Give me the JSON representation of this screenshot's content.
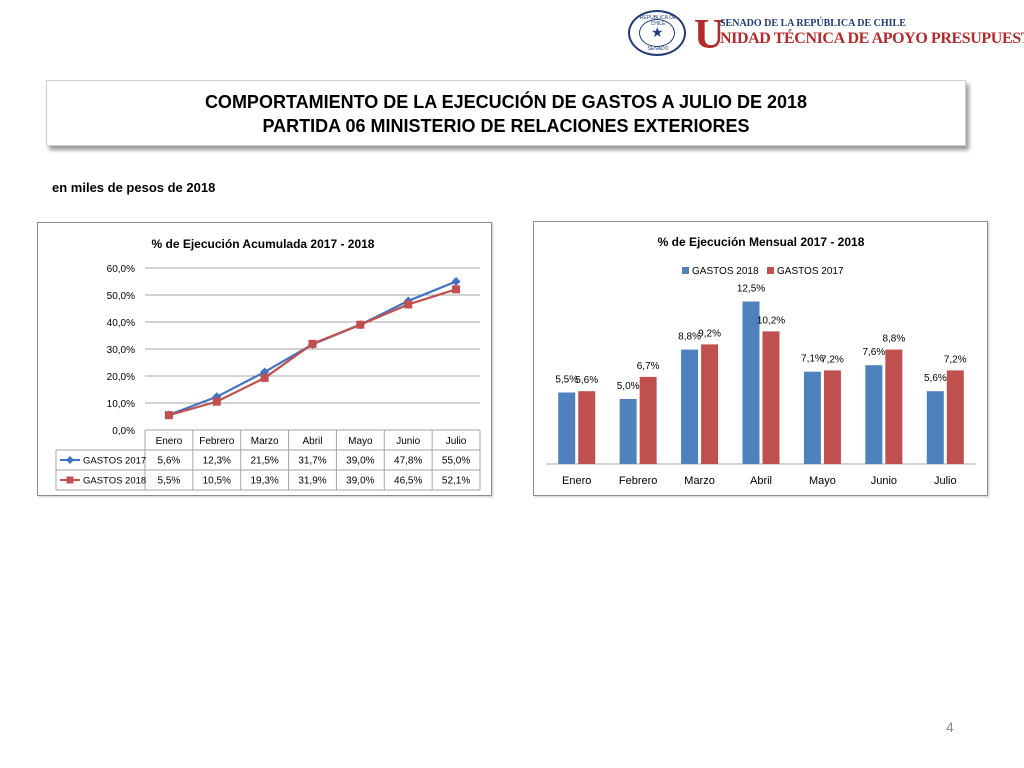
{
  "header": {
    "seal_top": "REPÚBLICA DE CHILE",
    "seal_bottom": "SENADO",
    "logo_letter": "U",
    "logo_line1": "SENADO DE LA REPÚBLICA DE CHILE",
    "logo_line2": "NIDAD TÉCNICA DE APOYO PRESUPUESTARIO",
    "brand_colors": {
      "blue": "#1f3b7a",
      "red": "#b32a2a"
    }
  },
  "title": {
    "line1": "COMPORTAMIENTO DE LA EJECUCIÓN DE GASTOS A JULIO DE 2018",
    "line2": "PARTIDA 06 MINISTERIO DE RELACIONES EXTERIORES"
  },
  "units": "en miles de pesos de 2018",
  "page_number": "4",
  "chart_data": [
    {
      "type": "line",
      "title": "% de Ejecución Acumulada 2017 - 2018",
      "categories": [
        "Enero",
        "Febrero",
        "Marzo",
        "Abril",
        "Mayo",
        "Junio",
        "Julio"
      ],
      "ylim": [
        0,
        60
      ],
      "yticks": [
        "0,0%",
        "10,0%",
        "20,0%",
        "30,0%",
        "40,0%",
        "50,0%",
        "60,0%"
      ],
      "grid": true,
      "legend": "data-table",
      "series": [
        {
          "name": "GASTOS 2017",
          "color": "#4472c4",
          "marker": "diamond",
          "values": [
            5.6,
            12.3,
            21.5,
            31.7,
            39.0,
            47.8,
            55.0
          ],
          "labels": [
            "5,6%",
            "12,3%",
            "21,5%",
            "31,7%",
            "39,0%",
            "47,8%",
            "55,0%"
          ]
        },
        {
          "name": "GASTOS 2018",
          "color": "#c0504d",
          "marker": "square",
          "values": [
            5.5,
            10.5,
            19.3,
            31.9,
            39.0,
            46.5,
            52.1
          ],
          "labels": [
            "5,5%",
            "10,5%",
            "19,3%",
            "31,9%",
            "39,0%",
            "46,5%",
            "52,1%"
          ]
        }
      ]
    },
    {
      "type": "bar",
      "title": "% de Ejecución Mensual 2017 - 2018",
      "categories": [
        "Enero",
        "Febrero",
        "Marzo",
        "Abril",
        "Mayo",
        "Junio",
        "Julio"
      ],
      "ylim": [
        0,
        14
      ],
      "grid": false,
      "legend": "top",
      "series": [
        {
          "name": "GASTOS 2018",
          "color": "#4f81bd",
          "values": [
            5.5,
            5.0,
            8.8,
            12.5,
            7.1,
            7.6,
            5.6
          ],
          "labels": [
            "5,5%",
            "5,0%",
            "8,8%",
            "12,5%",
            "7,1%",
            "7,6%",
            "5,6%"
          ]
        },
        {
          "name": "GASTOS 2017",
          "color": "#c0504d",
          "values": [
            5.6,
            6.7,
            9.2,
            10.2,
            7.2,
            8.8,
            7.2
          ],
          "labels": [
            "5,6%",
            "6,7%",
            "9,2%",
            "10,2%",
            "7,2%",
            "8,8%",
            "7,2%"
          ]
        }
      ]
    }
  ]
}
